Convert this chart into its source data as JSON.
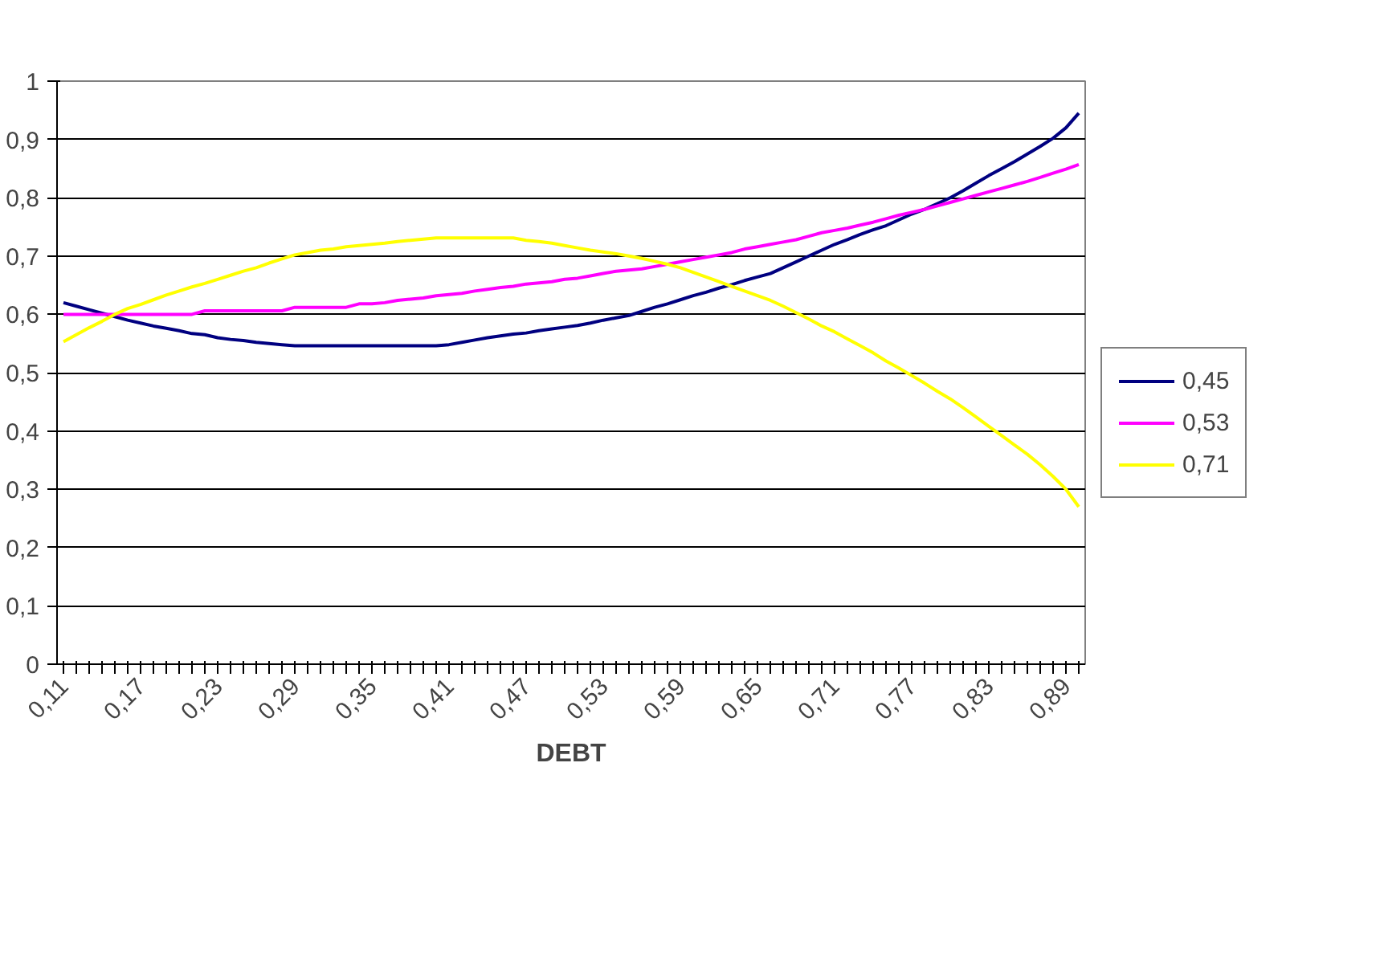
{
  "chart_data": {
    "type": "line",
    "xlabel": "DEBT",
    "categories": [
      "0,11",
      null,
      null,
      null,
      null,
      null,
      "0,17",
      null,
      null,
      null,
      null,
      null,
      "0,23",
      null,
      null,
      null,
      null,
      null,
      "0,29",
      null,
      null,
      null,
      null,
      null,
      "0,35",
      null,
      null,
      null,
      null,
      null,
      "0,41",
      null,
      null,
      null,
      null,
      null,
      "0,47",
      null,
      null,
      null,
      null,
      null,
      "0,53",
      null,
      null,
      null,
      null,
      null,
      "0,59",
      null,
      null,
      null,
      null,
      null,
      "0,65",
      null,
      null,
      null,
      null,
      null,
      "0,71",
      null,
      null,
      null,
      null,
      null,
      "0,77",
      null,
      null,
      null,
      null,
      null,
      "0,83",
      null,
      null,
      null,
      null,
      null,
      "0,89",
      null
    ],
    "series": [
      {
        "name": "0,45",
        "color": "#000080",
        "values": [
          0.62,
          0.614,
          0.608,
          0.602,
          0.596,
          0.59,
          0.585,
          0.58,
          0.576,
          0.572,
          0.567,
          0.565,
          0.56,
          0.557,
          0.555,
          0.552,
          0.55,
          0.548,
          0.546,
          0.546,
          0.546,
          0.546,
          0.546,
          0.546,
          0.546,
          0.546,
          0.546,
          0.546,
          0.546,
          0.546,
          0.548,
          0.552,
          0.556,
          0.56,
          0.563,
          0.566,
          0.568,
          0.572,
          0.575,
          0.578,
          0.581,
          0.585,
          0.59,
          0.594,
          0.598,
          0.605,
          0.612,
          0.618,
          0.625,
          0.632,
          0.638,
          0.645,
          0.651,
          0.658,
          0.664,
          0.67,
          0.68,
          0.69,
          0.7,
          0.71,
          0.72,
          0.728,
          0.737,
          0.745,
          0.752,
          0.762,
          0.772,
          0.78,
          0.79,
          0.8,
          0.812,
          0.825,
          0.838,
          0.85,
          0.862,
          0.875,
          0.888,
          0.902,
          0.92,
          0.945
        ]
      },
      {
        "name": "0,53",
        "color": "#ff00ff",
        "values": [
          0.6,
          0.6,
          0.6,
          0.6,
          0.6,
          0.6,
          0.6,
          0.6,
          0.6,
          0.6,
          0.6,
          0.606,
          0.606,
          0.606,
          0.606,
          0.606,
          0.606,
          0.606,
          0.612,
          0.612,
          0.612,
          0.612,
          0.612,
          0.618,
          0.618,
          0.62,
          0.624,
          0.626,
          0.628,
          0.632,
          0.634,
          0.636,
          0.64,
          0.643,
          0.646,
          0.648,
          0.652,
          0.654,
          0.656,
          0.66,
          0.662,
          0.666,
          0.67,
          0.674,
          0.676,
          0.678,
          0.682,
          0.686,
          0.69,
          0.694,
          0.698,
          0.702,
          0.706,
          0.712,
          0.716,
          0.72,
          0.724,
          0.728,
          0.734,
          0.74,
          0.744,
          0.748,
          0.753,
          0.758,
          0.764,
          0.77,
          0.775,
          0.78,
          0.786,
          0.792,
          0.798,
          0.804,
          0.81,
          0.816,
          0.822,
          0.828,
          0.835,
          0.842,
          0.849,
          0.857
        ]
      },
      {
        "name": "0,71",
        "color": "#ffff00",
        "values": [
          0.553,
          0.565,
          0.577,
          0.588,
          0.6,
          0.61,
          0.617,
          0.625,
          0.633,
          0.64,
          0.647,
          0.653,
          0.66,
          0.667,
          0.674,
          0.68,
          0.688,
          0.695,
          0.702,
          0.706,
          0.71,
          0.712,
          0.716,
          0.718,
          0.72,
          0.722,
          0.725,
          0.727,
          0.729,
          0.731,
          0.731,
          0.731,
          0.731,
          0.731,
          0.731,
          0.731,
          0.727,
          0.725,
          0.722,
          0.718,
          0.714,
          0.71,
          0.707,
          0.704,
          0.7,
          0.696,
          0.691,
          0.686,
          0.68,
          0.672,
          0.664,
          0.656,
          0.648,
          0.64,
          0.632,
          0.624,
          0.614,
          0.603,
          0.592,
          0.58,
          0.57,
          0.558,
          0.546,
          0.534,
          0.52,
          0.508,
          0.495,
          0.482,
          0.468,
          0.455,
          0.44,
          0.424,
          0.408,
          0.392,
          0.376,
          0.36,
          0.342,
          0.322,
          0.3,
          0.27
        ]
      }
    ],
    "ylim": [
      0,
      1
    ],
    "yticks": [
      0,
      {
        "value": 0.1,
        "label": "0,1"
      },
      {
        "value": 0.2,
        "label": "0,2"
      },
      {
        "value": 0.3,
        "label": "0,3"
      },
      {
        "value": 0.4,
        "label": "0,4"
      },
      {
        "value": 0.5,
        "label": "0,5"
      },
      {
        "value": 0.6,
        "label": "0,6"
      },
      {
        "value": 0.7,
        "label": "0,7"
      },
      {
        "value": 0.8,
        "label": "0,8"
      },
      {
        "value": 0.9,
        "label": "0,9"
      },
      1
    ],
    "grid": "y",
    "legend": "right",
    "marker": "none",
    "line_style": "solid"
  }
}
